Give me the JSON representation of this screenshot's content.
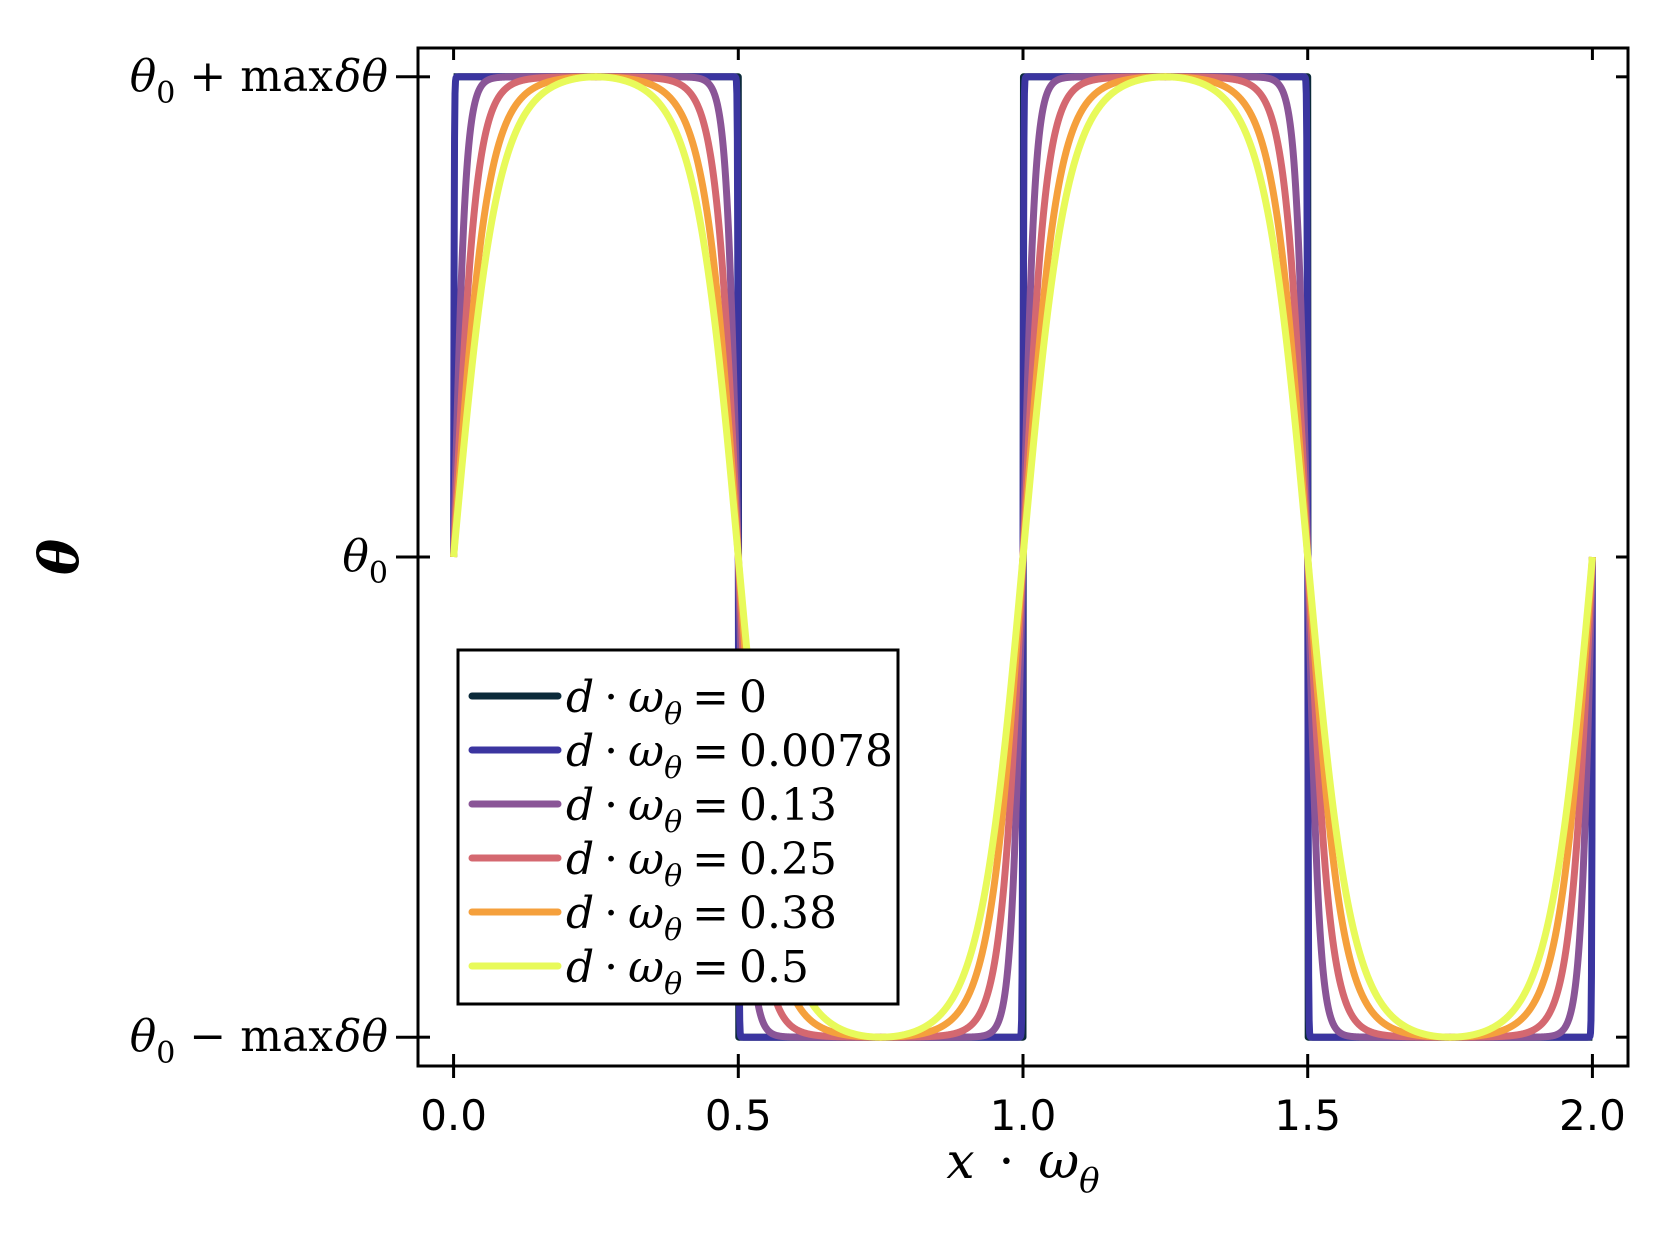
{
  "chart_data": {
    "type": "line",
    "title": "",
    "xlabel": "x · ωθ",
    "xlabel_parts": {
      "var": "x",
      "dot": "·",
      "omega": "ω",
      "sub": "θ"
    },
    "ylabel": "θ",
    "xlim": [
      -0.0625,
      2.0625
    ],
    "ylim": [
      -1.06,
      1.06
    ],
    "x_ticks": [
      {
        "value": 0.0,
        "label": "0.0"
      },
      {
        "value": 0.5,
        "label": "0.5"
      },
      {
        "value": 1.0,
        "label": "1.0"
      },
      {
        "value": 1.5,
        "label": "1.5"
      },
      {
        "value": 2.0,
        "label": "2.0"
      }
    ],
    "y_ticks": [
      {
        "value": 1,
        "label": "θ0 + maxδθ",
        "base": "θ",
        "sub": "0",
        "op": "+",
        "rest": "max",
        "rest2": "δθ"
      },
      {
        "value": 0,
        "label": "θ0",
        "base": "θ",
        "sub": "0",
        "op": "",
        "rest": "",
        "rest2": ""
      },
      {
        "value": -1,
        "label": "θ0 − maxδθ",
        "base": "θ",
        "sub": "0",
        "op": "−",
        "rest": "max",
        "rest2": "δθ"
      }
    ],
    "x_domain": [
      0,
      2
    ],
    "function": "y = tanh(sin(2π·x)/k) normalised; k = 0 gives a square wave",
    "series": [
      {
        "name": "d · ωθ = 0",
        "param": "0",
        "k": 0.0,
        "color": "#0b2a3a"
      },
      {
        "name": "d · ωθ = 0.0078",
        "param": "0.0078",
        "k": 0.0078,
        "color": "#3b35a0"
      },
      {
        "name": "d · ωθ = 0.13",
        "param": "0.13",
        "k": 0.13,
        "color": "#8a5597"
      },
      {
        "name": "d · ωθ = 0.25",
        "param": "0.25",
        "k": 0.25,
        "color": "#d46870"
      },
      {
        "name": "d · ωθ = 0.38",
        "param": "0.38",
        "k": 0.38,
        "color": "#f5a03c"
      },
      {
        "name": "d · ωθ = 0.5",
        "param": "0.5",
        "k": 0.5,
        "color": "#e8fa5a"
      }
    ],
    "legend": {
      "placement": "lower-left",
      "lhs_var": "d",
      "lhs_dot": "·",
      "lhs_omega": "ω",
      "lhs_sub": "θ",
      "eq": "="
    },
    "grid": false
  }
}
